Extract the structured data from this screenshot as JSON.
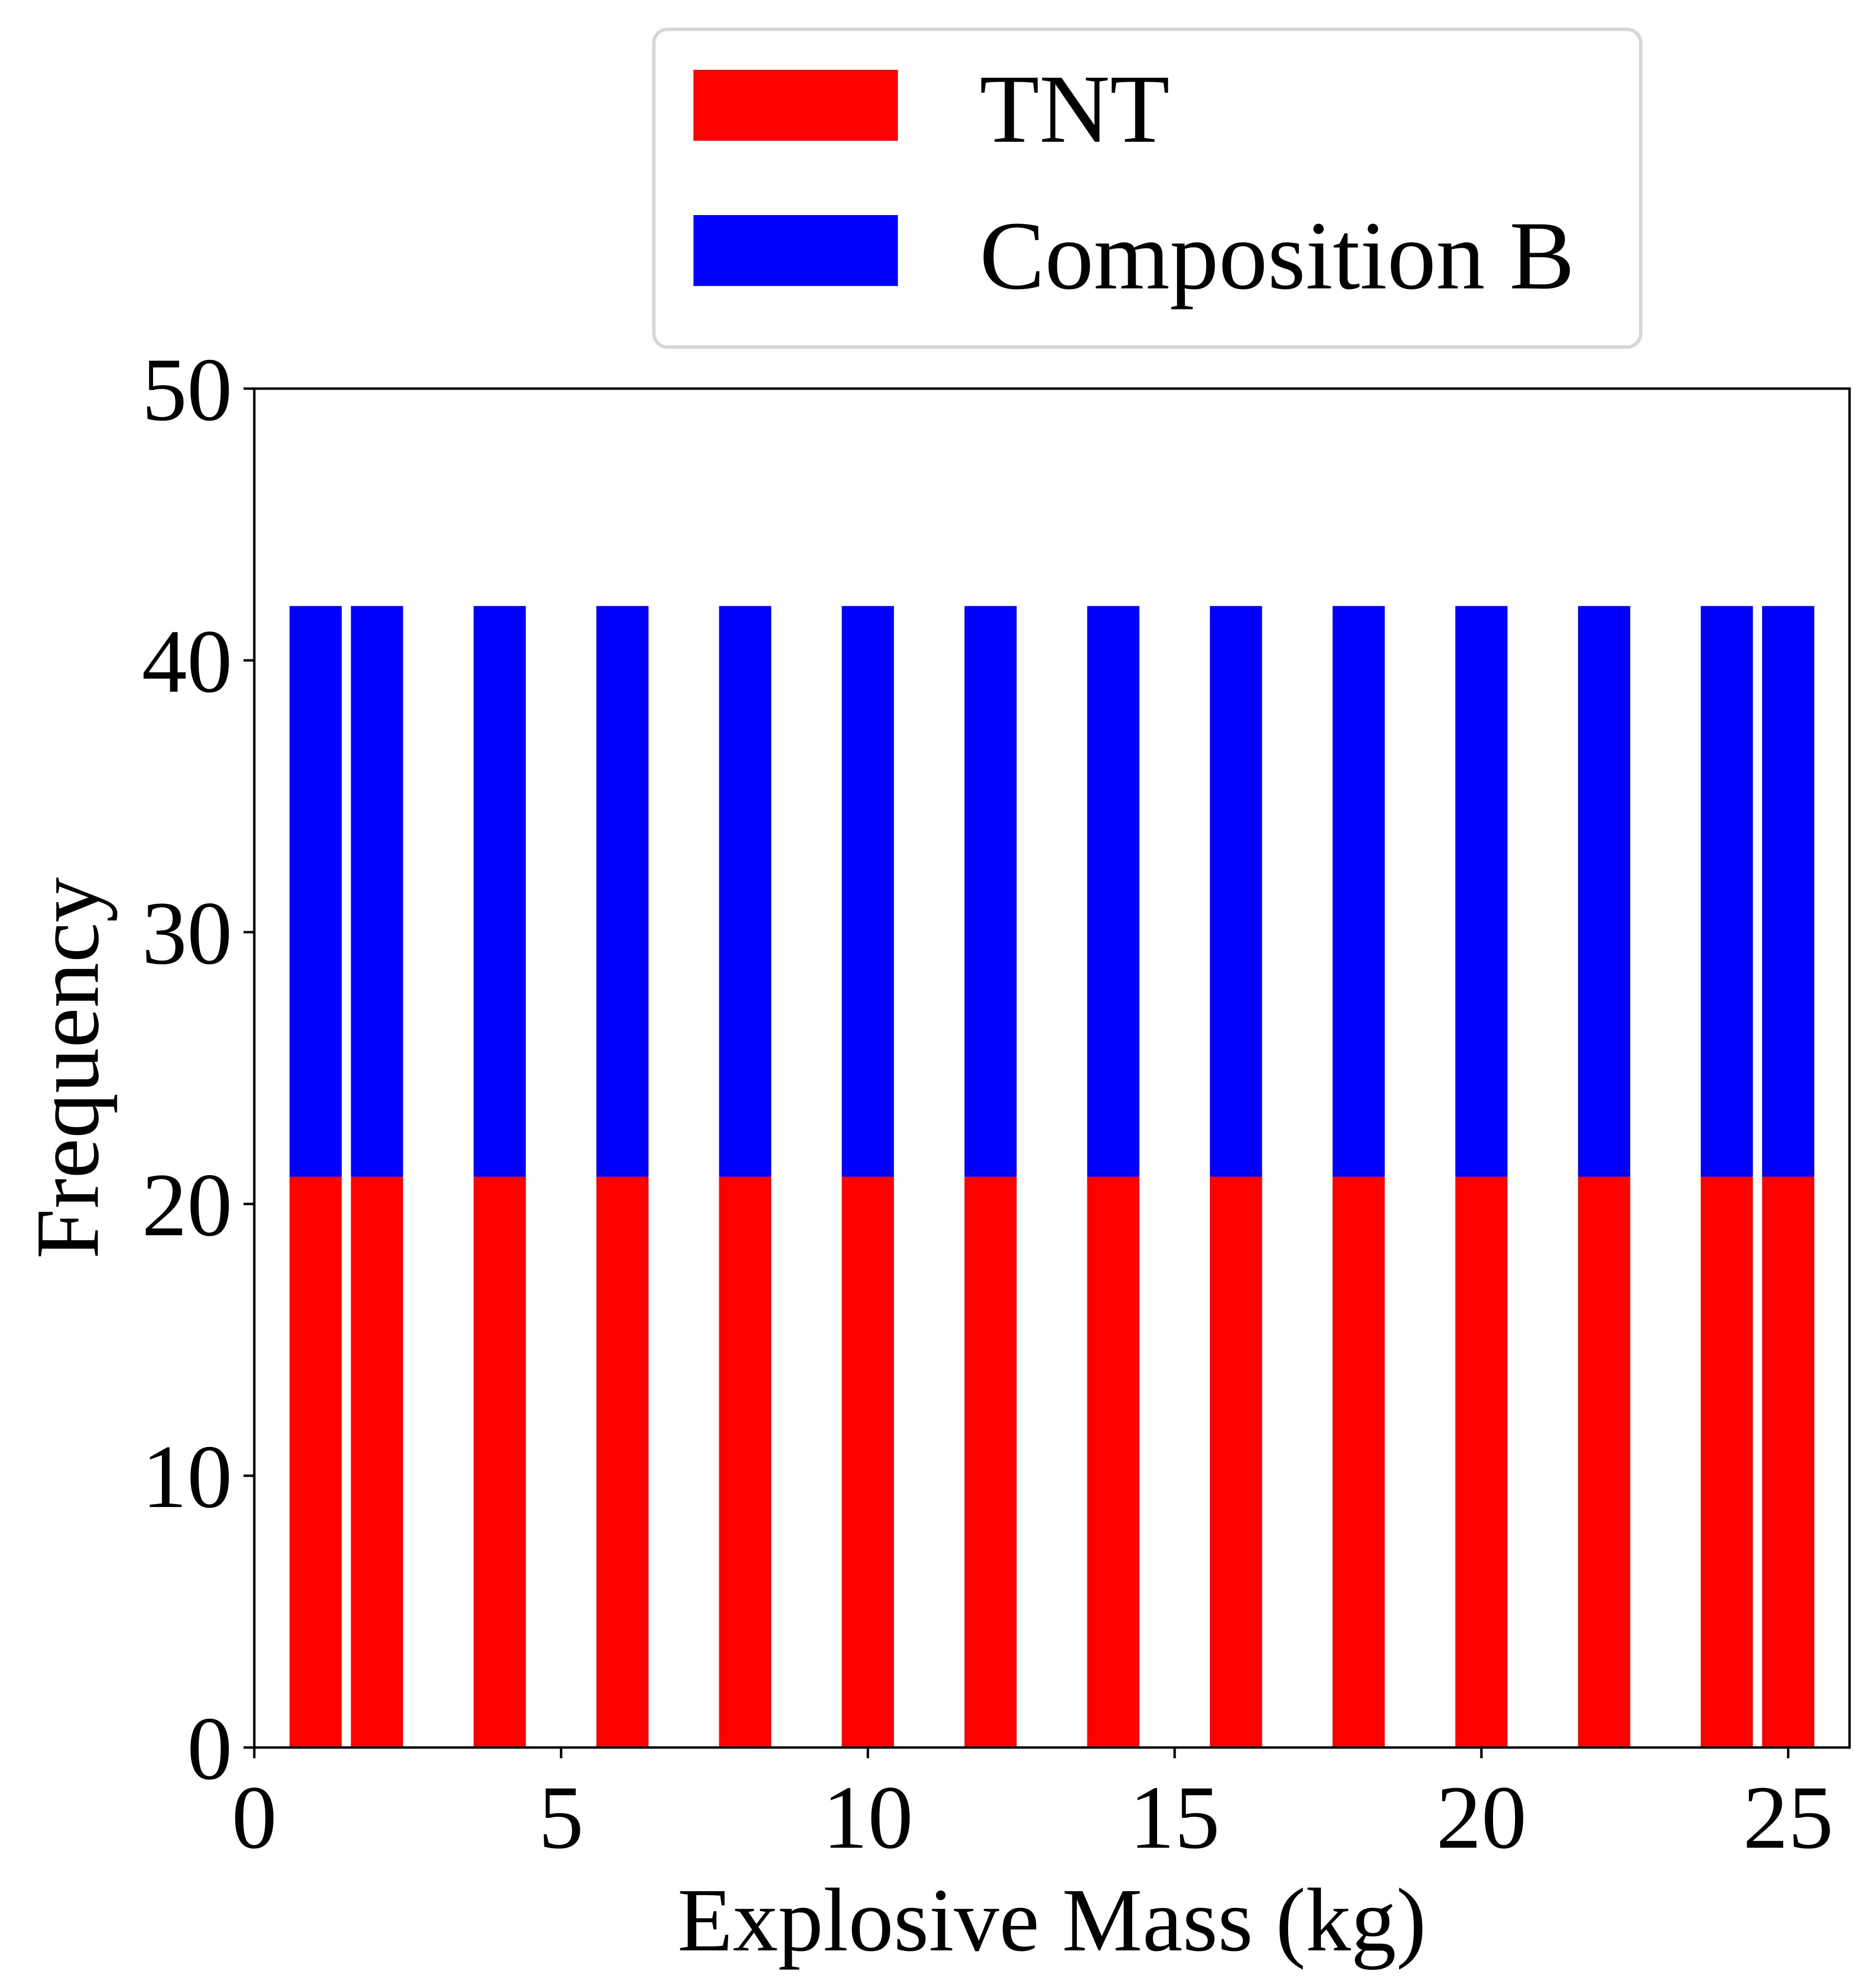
{
  "chart_data": {
    "type": "bar",
    "stacked": true,
    "xlabel": "Explosive Mass (kg)",
    "ylabel": "Frequency",
    "xlim": [
      0,
      26
    ],
    "ylim": [
      0,
      50
    ],
    "xticks": [
      "0",
      "5",
      "10",
      "15",
      "20",
      "25"
    ],
    "yticks": [
      "0",
      "10",
      "20",
      "30",
      "40",
      "50"
    ],
    "x": [
      1.0,
      2.0,
      4.0,
      6.0,
      8.0,
      10.0,
      12.0,
      14.0,
      16.0,
      18.0,
      20.0,
      22.0,
      24.0,
      25.0
    ],
    "bar_width_kg": 0.85,
    "series": [
      {
        "name": "TNT",
        "color": "#ff0000",
        "values": [
          21,
          21,
          21,
          21,
          21,
          21,
          21,
          21,
          21,
          21,
          21,
          21,
          21,
          21
        ]
      },
      {
        "name": "Composition B",
        "color": "#0000ff",
        "values": [
          21,
          21,
          21,
          21,
          21,
          21,
          21,
          21,
          21,
          21,
          21,
          21,
          21,
          21
        ]
      }
    ],
    "legend_position": "top-center",
    "grid": false
  }
}
